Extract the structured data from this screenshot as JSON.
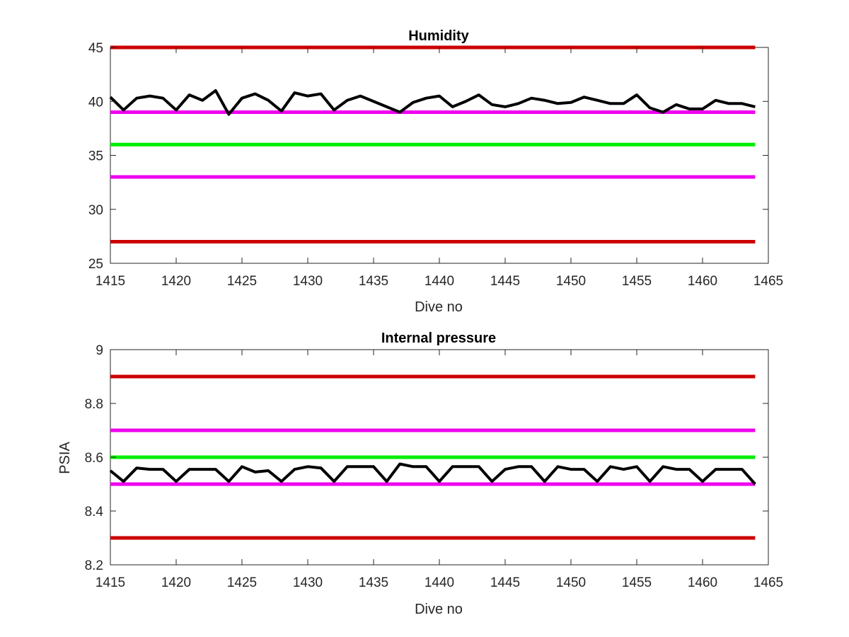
{
  "chart_data": [
    {
      "type": "line",
      "title": "Humidity",
      "xlabel": "Dive no",
      "ylabel": "",
      "xlim": [
        1415,
        1465
      ],
      "ylim": [
        25,
        45
      ],
      "xticks": [
        1415,
        1420,
        1425,
        1430,
        1435,
        1440,
        1445,
        1450,
        1455,
        1460,
        1465
      ],
      "yticks": [
        25,
        30,
        35,
        40,
        45
      ],
      "grid": false,
      "x": [
        1415,
        1416,
        1417,
        1418,
        1419,
        1420,
        1421,
        1422,
        1423,
        1424,
        1425,
        1426,
        1427,
        1428,
        1429,
        1430,
        1431,
        1432,
        1433,
        1434,
        1435,
        1436,
        1437,
        1438,
        1439,
        1440,
        1441,
        1442,
        1443,
        1444,
        1445,
        1446,
        1447,
        1448,
        1449,
        1450,
        1451,
        1452,
        1453,
        1454,
        1455,
        1456,
        1457,
        1458,
        1459,
        1460,
        1461,
        1462,
        1463,
        1464
      ],
      "series": [
        {
          "values": [
            40.4,
            39.2,
            40.3,
            40.5,
            40.3,
            39.2,
            40.6,
            40.1,
            41.0,
            38.8,
            40.3,
            40.7,
            40.1,
            39.1,
            40.8,
            40.5,
            40.7,
            39.2,
            40.1,
            40.5,
            40.0,
            39.5,
            39.0,
            39.9,
            40.3,
            40.5,
            39.5,
            40.0,
            40.6,
            39.7,
            39.5,
            39.8,
            40.3,
            40.1,
            39.8,
            39.9,
            40.4,
            40.1,
            39.8,
            39.8,
            40.6,
            39.4,
            39.0,
            39.7,
            39.3,
            39.3,
            40.1,
            39.8,
            39.8,
            39.5
          ],
          "color": "#000000"
        }
      ],
      "reference_lines": [
        {
          "y": 45,
          "color": "#cc0000"
        },
        {
          "y": 39,
          "color": "#ee00ee"
        },
        {
          "y": 36,
          "color": "#00ee00"
        },
        {
          "y": 33,
          "color": "#ee00ee"
        },
        {
          "y": 27,
          "color": "#cc0000"
        }
      ]
    },
    {
      "type": "line",
      "title": "Internal pressure",
      "xlabel": "Dive no",
      "ylabel": "PSIA",
      "xlim": [
        1415,
        1465
      ],
      "ylim": [
        8.2,
        9.0
      ],
      "xticks": [
        1415,
        1420,
        1425,
        1430,
        1435,
        1440,
        1445,
        1450,
        1455,
        1460,
        1465
      ],
      "yticks": [
        8.2,
        8.4,
        8.6,
        8.8,
        9.0
      ],
      "ytick_labels": [
        "8.2",
        "8.4",
        "8.6",
        "8.8",
        "9"
      ],
      "grid": false,
      "x": [
        1415,
        1416,
        1417,
        1418,
        1419,
        1420,
        1421,
        1422,
        1423,
        1424,
        1425,
        1426,
        1427,
        1428,
        1429,
        1430,
        1431,
        1432,
        1433,
        1434,
        1435,
        1436,
        1437,
        1438,
        1439,
        1440,
        1441,
        1442,
        1443,
        1444,
        1445,
        1446,
        1447,
        1448,
        1449,
        1450,
        1451,
        1452,
        1453,
        1454,
        1455,
        1456,
        1457,
        1458,
        1459,
        1460,
        1461,
        1462,
        1463,
        1464
      ],
      "series": [
        {
          "values": [
            8.55,
            8.51,
            8.56,
            8.555,
            8.555,
            8.51,
            8.555,
            8.555,
            8.555,
            8.51,
            8.565,
            8.545,
            8.55,
            8.51,
            8.555,
            8.565,
            8.56,
            8.51,
            8.565,
            8.565,
            8.565,
            8.51,
            8.575,
            8.565,
            8.565,
            8.51,
            8.565,
            8.565,
            8.565,
            8.51,
            8.555,
            8.565,
            8.565,
            8.51,
            8.565,
            8.555,
            8.555,
            8.51,
            8.565,
            8.555,
            8.565,
            8.51,
            8.565,
            8.555,
            8.555,
            8.51,
            8.555,
            8.555,
            8.555,
            8.5
          ],
          "color": "#000000"
        }
      ],
      "reference_lines": [
        {
          "y": 8.9,
          "color": "#cc0000"
        },
        {
          "y": 8.7,
          "color": "#ee00ee"
        },
        {
          "y": 8.6,
          "color": "#00ee00"
        },
        {
          "y": 8.5,
          "color": "#ee00ee"
        },
        {
          "y": 8.3,
          "color": "#cc0000"
        }
      ]
    }
  ]
}
